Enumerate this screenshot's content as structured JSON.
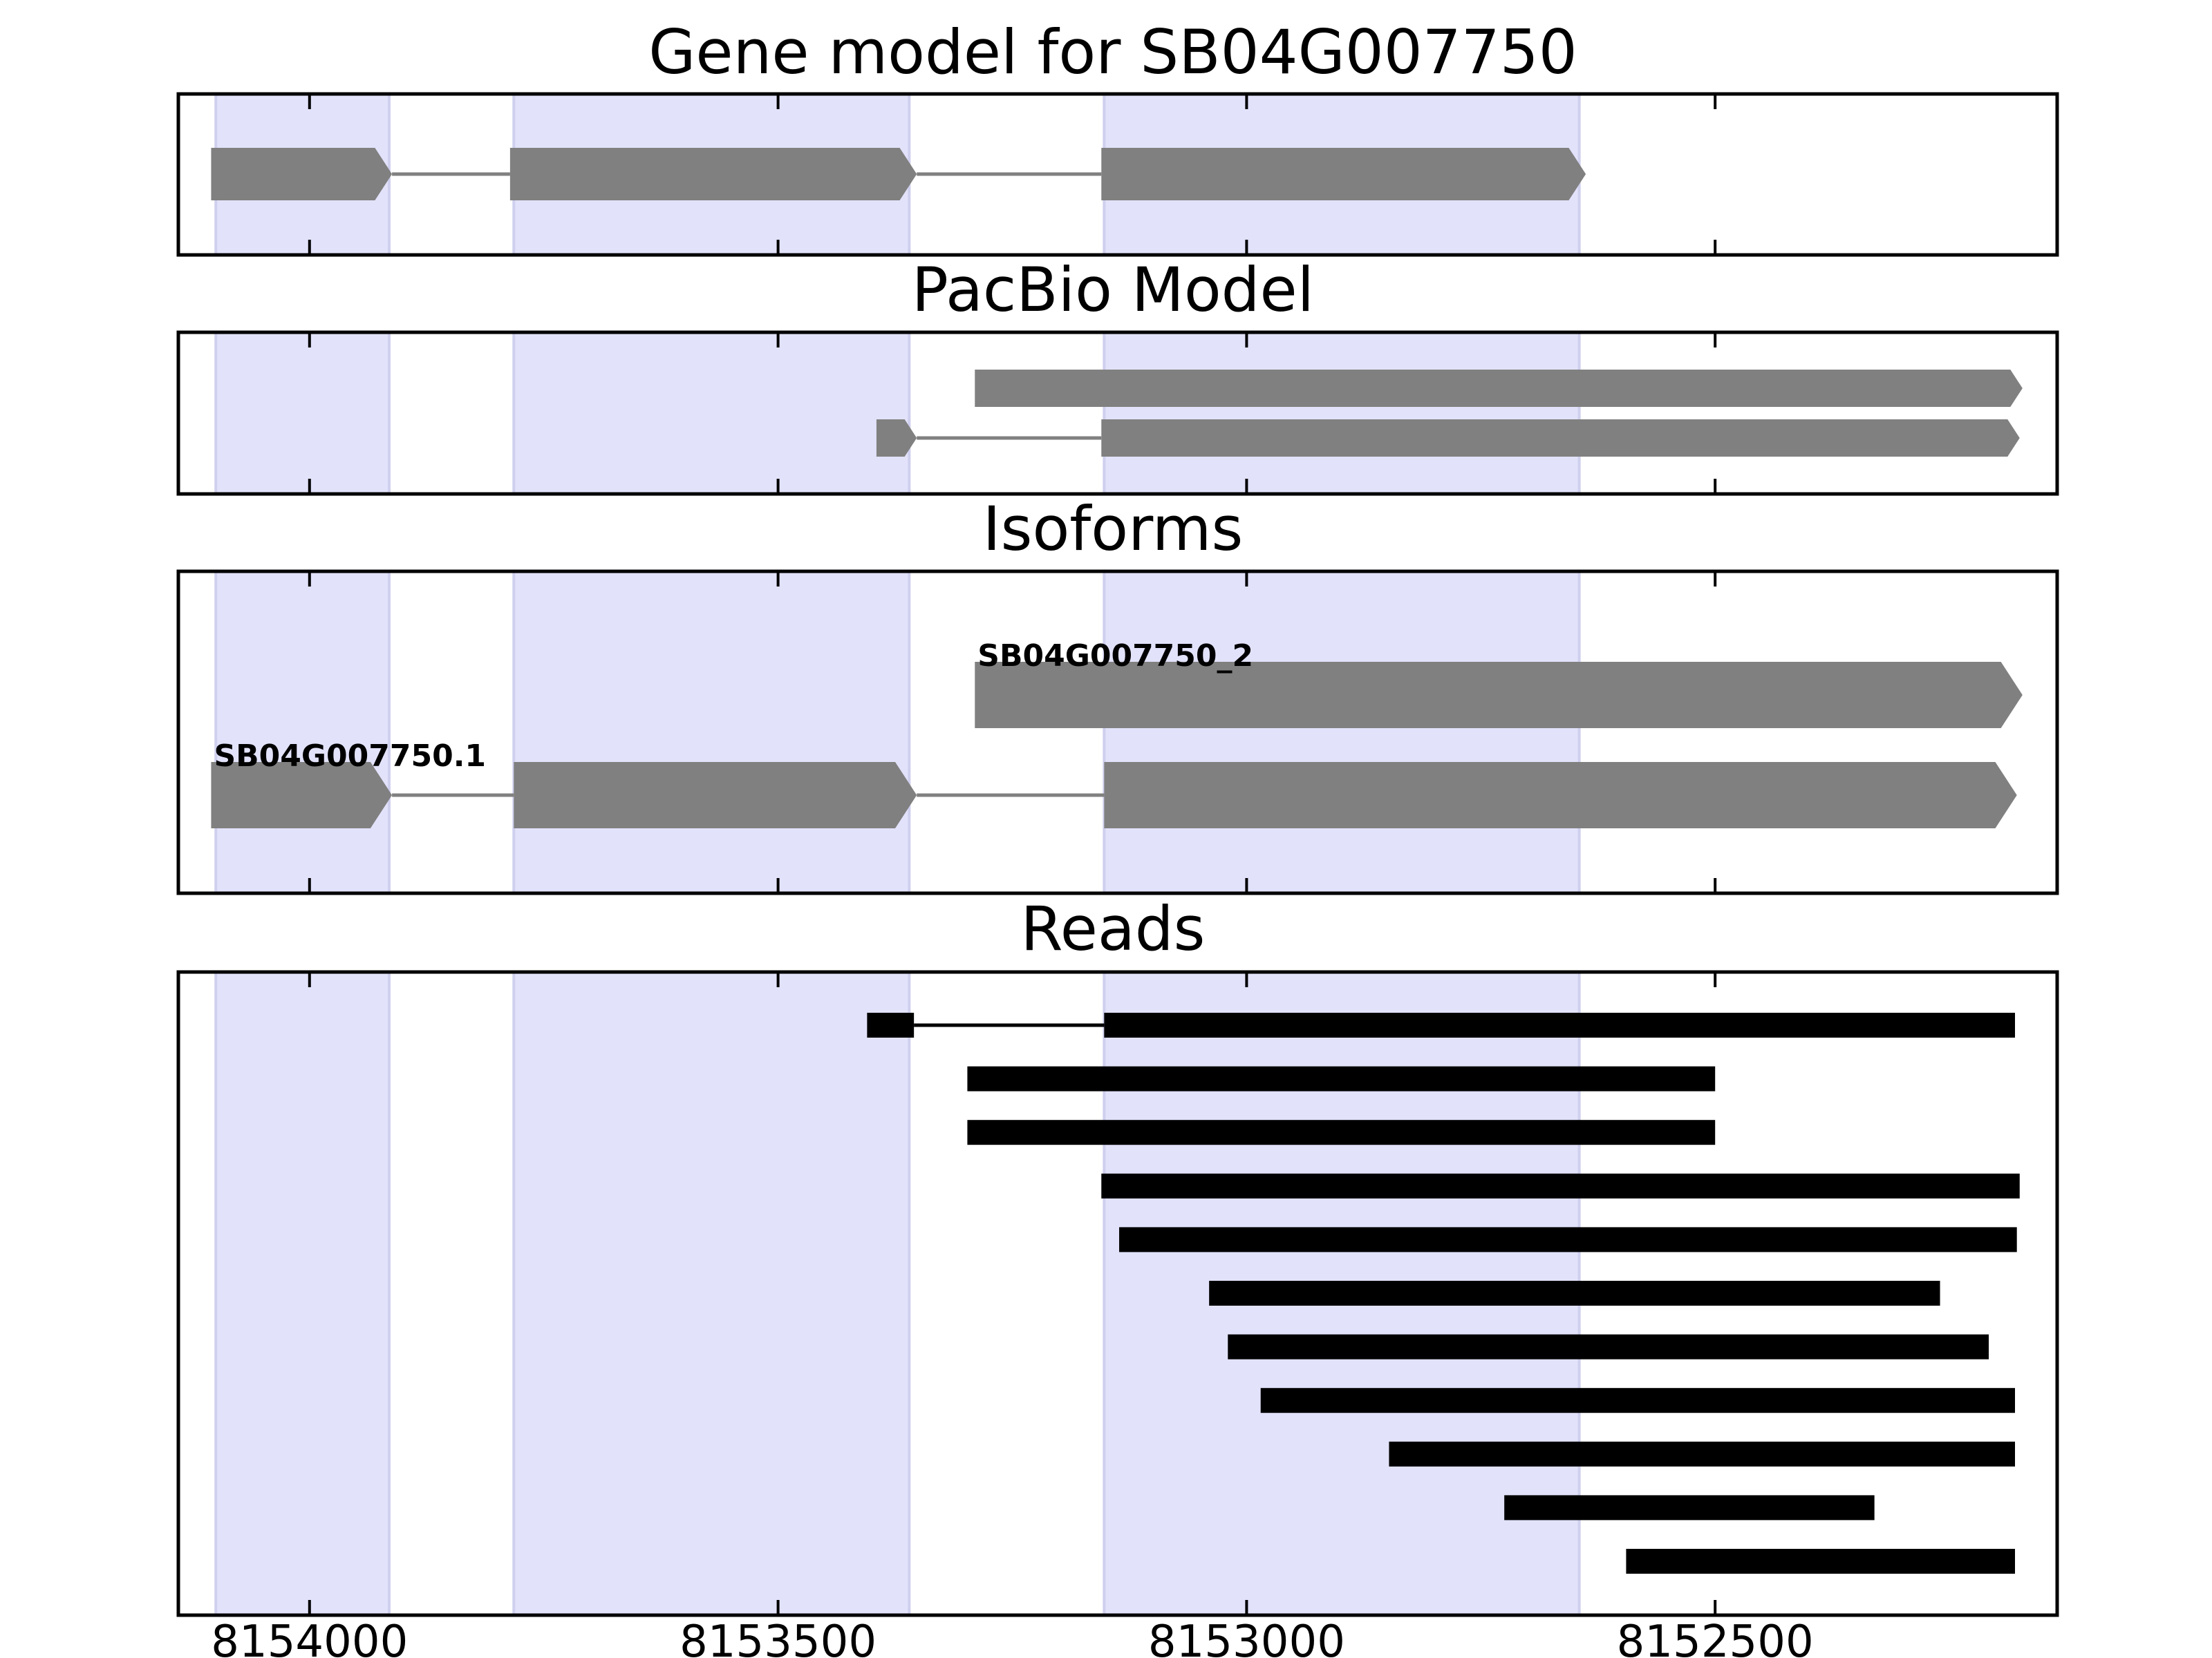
{
  "title": "Gene model for SB04G007750",
  "colors": {
    "exon_shade": "#e2e2fb",
    "exon_shade_edge": "#cfcfee",
    "gray_feature": "#808080",
    "read": "#000000",
    "axis": "#000000"
  },
  "x_axis": {
    "reversed": true,
    "range": [
      8154140,
      8152135
    ],
    "ticks": [
      8154000,
      8153500,
      8153000,
      8152500
    ],
    "tick_labels": [
      "8154000",
      "8153500",
      "8153000",
      "8152500"
    ]
  },
  "shaded_regions": [
    [
      8154100,
      8153915
    ],
    [
      8153782,
      8153360
    ],
    [
      8153152,
      8152645
    ]
  ],
  "chart_data": [
    {
      "type": "gene-track",
      "title": "Gene model for SB04G007750",
      "features": [
        {
          "exons": [
            [
              8154105,
              8153912
            ],
            [
              8153786,
              8153352
            ],
            [
              8153155,
              8152638
            ]
          ],
          "arrow": true
        }
      ]
    },
    {
      "type": "gene-track",
      "title": "PacBio Model",
      "features": [
        {
          "exons": [
            [
              8153290,
              8152172
            ]
          ],
          "arrow": true
        },
        {
          "exons": [
            [
              8153395,
              8153352
            ],
            [
              8153155,
              8152175
            ]
          ],
          "arrow": true
        }
      ]
    },
    {
      "type": "gene-track",
      "title": "Isoforms",
      "features": [
        {
          "label": "SB04G007750_2",
          "exons": [
            [
              8153290,
              8152172
            ]
          ],
          "arrow": true
        },
        {
          "label": "SB04G007750.1",
          "exons": [
            [
              8154105,
              8153912
            ],
            [
              8153782,
              8153352
            ],
            [
              8153152,
              8152178
            ]
          ],
          "arrow": true
        }
      ]
    },
    {
      "type": "read-track",
      "title": "Reads",
      "reads": [
        {
          "blocks": [
            [
              8153405,
              8153355
            ],
            [
              8153152,
              8152180
            ]
          ]
        },
        {
          "blocks": [
            [
              8153298,
              8152500
            ]
          ]
        },
        {
          "blocks": [
            [
              8153298,
              8152500
            ]
          ]
        },
        {
          "blocks": [
            [
              8153155,
              8152175
            ]
          ]
        },
        {
          "blocks": [
            [
              8153136,
              8152178
            ]
          ]
        },
        {
          "blocks": [
            [
              8153040,
              8152260
            ]
          ]
        },
        {
          "blocks": [
            [
              8153020,
              8152208
            ]
          ]
        },
        {
          "blocks": [
            [
              8152985,
              8152180
            ]
          ]
        },
        {
          "blocks": [
            [
              8152848,
              8152180
            ]
          ]
        },
        {
          "blocks": [
            [
              8152725,
              8152330
            ]
          ]
        },
        {
          "blocks": [
            [
              8152595,
              8152180
            ]
          ]
        }
      ]
    }
  ]
}
